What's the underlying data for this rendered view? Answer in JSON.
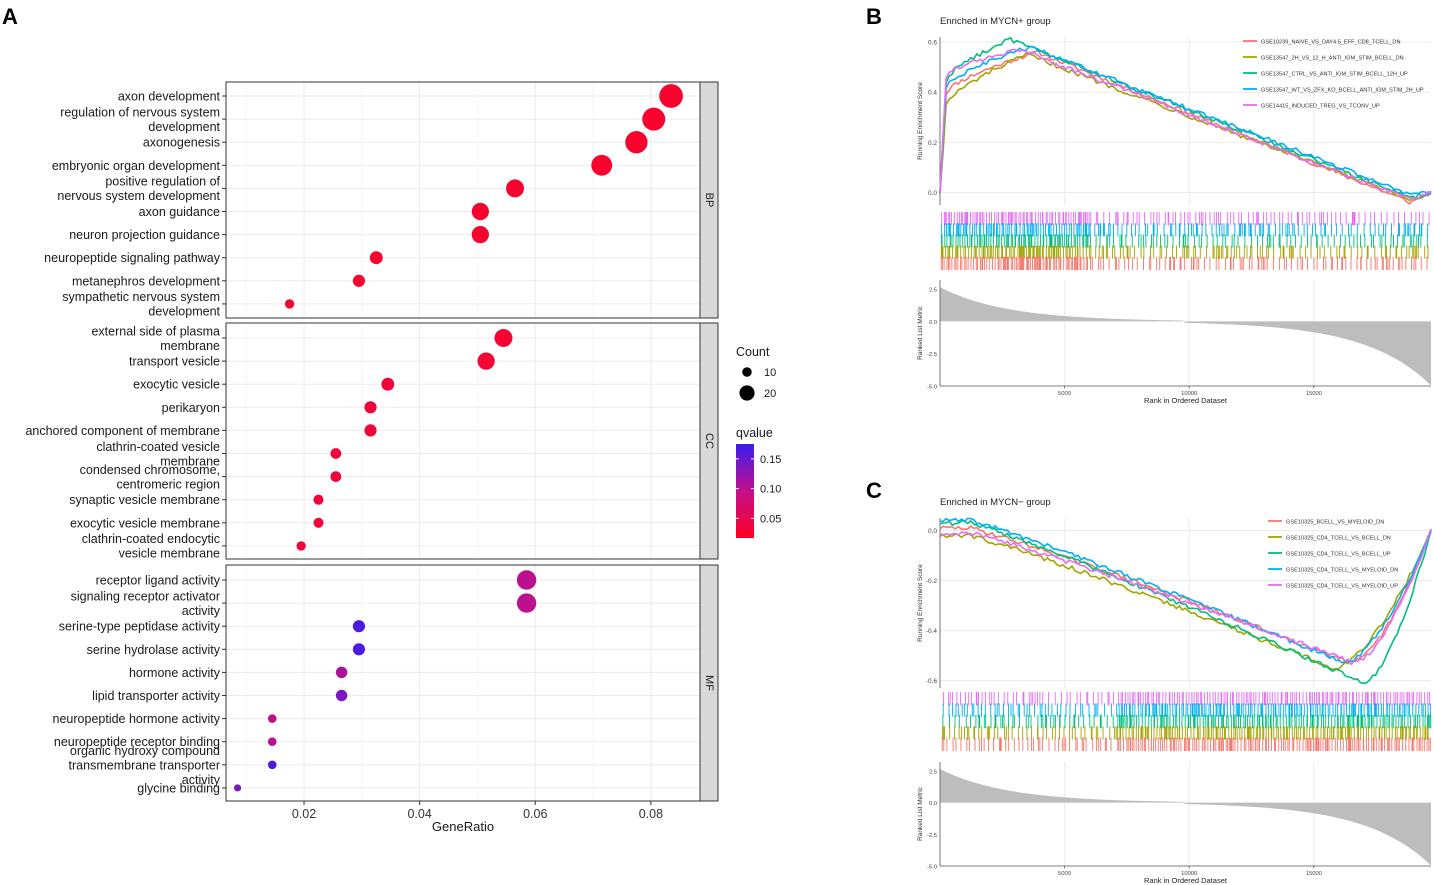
{
  "colors": {
    "count_dot": "#000000",
    "qvalue_low": "#ff0022",
    "qvalue_mid": "#c31089",
    "qvalue_high": "#3b1cf0",
    "facet_strip": "#d9d9d9",
    "grid": "#ebebeb",
    "metric_fill": "#bdbdbd",
    "series": [
      "#f8766d",
      "#a3a500",
      "#00bf7d",
      "#00b0f6",
      "#e76bf3"
    ]
  },
  "chart_data": [
    {
      "panel": "A",
      "type": "scatter",
      "xlabel": "GeneRatio",
      "xlim": [
        0.0065,
        0.0885
      ],
      "xticks": [
        0.02,
        0.04,
        0.06,
        0.08
      ],
      "xtick_labels": [
        "0.02",
        "0.04",
        "0.06",
        "0.08"
      ],
      "legend_count_title": "Count",
      "legend_count": [
        {
          "label": "10",
          "value": 10
        },
        {
          "label": "20",
          "value": 20
        }
      ],
      "legend_q_title": "qvalue",
      "legend_q_ticks": [
        {
          "label": "0.15",
          "value": 0.15
        },
        {
          "label": "0.10",
          "value": 0.1
        },
        {
          "label": "0.05",
          "value": 0.05
        }
      ],
      "qlim": [
        0.01,
        0.18
      ],
      "facets": [
        {
          "strip": "BP",
          "terms": [
            {
              "label": "axon development",
              "x": 0.0835,
              "count": 26,
              "q": 0.02
            },
            {
              "label": "regulation of nervous system\ndevelopment",
              "x": 0.0805,
              "count": 25,
              "q": 0.02
            },
            {
              "label": "axonogenesis",
              "x": 0.0775,
              "count": 24,
              "q": 0.02
            },
            {
              "label": "embryonic organ development",
              "x": 0.0715,
              "count": 22,
              "q": 0.02
            },
            {
              "label": "positive regulation of\nnervous system development",
              "x": 0.0565,
              "count": 18,
              "q": 0.02
            },
            {
              "label": "axon guidance",
              "x": 0.0505,
              "count": 17,
              "q": 0.02
            },
            {
              "label": "neuron projection guidance",
              "x": 0.0505,
              "count": 17,
              "q": 0.02
            },
            {
              "label": "neuropeptide signaling pathway",
              "x": 0.0325,
              "count": 11,
              "q": 0.02
            },
            {
              "label": "metanephros development",
              "x": 0.0295,
              "count": 10,
              "q": 0.02
            },
            {
              "label": "sympathetic nervous system\ndevelopment",
              "x": 0.0175,
              "count": 6,
              "q": 0.02
            }
          ]
        },
        {
          "strip": "CC",
          "terms": [
            {
              "label": "external side of plasma\nmembrane",
              "x": 0.0545,
              "count": 18,
              "q": 0.025
            },
            {
              "label": "transport vesicle",
              "x": 0.0515,
              "count": 17,
              "q": 0.025
            },
            {
              "label": "exocytic vesicle",
              "x": 0.0345,
              "count": 11,
              "q": 0.03
            },
            {
              "label": "perikaryon",
              "x": 0.0315,
              "count": 10,
              "q": 0.03
            },
            {
              "label": "anchored component of membrane",
              "x": 0.0315,
              "count": 10,
              "q": 0.03
            },
            {
              "label": "clathrin-coated vesicle\nmembrane",
              "x": 0.0255,
              "count": 8,
              "q": 0.03
            },
            {
              "label": "condensed chromosome,\ncentromeric region",
              "x": 0.0255,
              "count": 8,
              "q": 0.03
            },
            {
              "label": "synaptic vesicle membrane",
              "x": 0.0225,
              "count": 7,
              "q": 0.03
            },
            {
              "label": "exocytic vesicle membrane",
              "x": 0.0225,
              "count": 7,
              "q": 0.03
            },
            {
              "label": "clathrin-coated endocytic\nvesicle membrane",
              "x": 0.0195,
              "count": 6,
              "q": 0.03
            }
          ]
        },
        {
          "strip": "MF",
          "terms": [
            {
              "label": "receptor ligand activity",
              "x": 0.0585,
              "count": 20,
              "q": 0.1
            },
            {
              "label": "signaling receptor activator\nactivity",
              "x": 0.0585,
              "count": 20,
              "q": 0.1
            },
            {
              "label": "serine-type peptidase activity",
              "x": 0.0295,
              "count": 10,
              "q": 0.17
            },
            {
              "label": "serine hydrolase activity",
              "x": 0.0295,
              "count": 10,
              "q": 0.17
            },
            {
              "label": "hormone activity",
              "x": 0.0265,
              "count": 9,
              "q": 0.11
            },
            {
              "label": "lipid transporter activity",
              "x": 0.0265,
              "count": 9,
              "q": 0.14
            },
            {
              "label": "neuropeptide hormone activity",
              "x": 0.0145,
              "count": 5,
              "q": 0.1
            },
            {
              "label": "neuropeptide receptor binding",
              "x": 0.0145,
              "count": 5,
              "q": 0.1
            },
            {
              "label": "organic hydroxy compound\ntransmembrane transporter\nactivity",
              "x": 0.0145,
              "count": 5,
              "q": 0.17
            },
            {
              "label": "glycine binding",
              "x": 0.0085,
              "count": 3,
              "q": 0.14
            }
          ]
        }
      ]
    },
    {
      "panel": "B",
      "type": "line",
      "title": "Enriched in MYCN+ group",
      "ylabel": "Running Enrichment Score",
      "ylim": [
        -0.05,
        0.62
      ],
      "yticks": [
        0.0,
        0.2,
        0.4,
        0.6
      ],
      "ytick_labels": [
        "0.0",
        "0.2",
        "0.4",
        "0.6"
      ],
      "metric_ylabel": "Ranked List Metric",
      "metric_ylim": [
        -5.0,
        3.2
      ],
      "metric_yticks": [
        2.5,
        0.0,
        -2.5,
        -5.0
      ],
      "metric_ytick_labels": [
        "2.5",
        "0.0",
        "-2.5",
        "-5.0"
      ],
      "xlabel": "Rank in Ordered Dataset",
      "xlim": [
        0,
        19700
      ],
      "xticks": [
        5000,
        10000,
        15000
      ],
      "xtick_labels": [
        "5000",
        "10000",
        "15000"
      ],
      "series": [
        {
          "name": "GSE10239_NAIVE_VS_DAY4.5_EFF_CD8_TCELL_DN",
          "peak_rank": 3900,
          "peak": 0.56,
          "early": 0.4,
          "tail": -0.04
        },
        {
          "name": "GSE13547_2H_VS_12_H_ANTI_IGM_STIM_BCELL_DN",
          "peak_rank": 3500,
          "peak": 0.55,
          "early": 0.35,
          "tail": -0.03
        },
        {
          "name": "GSE13547_CTRL_VS_ANTI_IGM_STIM_BCELL_12H_UP",
          "peak_rank": 2800,
          "peak": 0.61,
          "early": 0.45,
          "tail": -0.02
        },
        {
          "name": "GSE13547_WT_VS_ZFX_KO_BCELL_ANTI_IGM_STIM_2H_UP",
          "peak_rank": 3600,
          "peak": 0.58,
          "early": 0.42,
          "tail": -0.01
        },
        {
          "name": "GSE14415_INDUCED_TREG_VS_TCONV_UP",
          "peak_rank": 3200,
          "peak": 0.57,
          "early": 0.47,
          "tail": -0.03
        }
      ]
    },
    {
      "panel": "C",
      "type": "line",
      "title": "Enriched in MYCN− group",
      "ylabel": "Running Enrichment Score",
      "ylim": [
        -0.63,
        0.05
      ],
      "yticks": [
        0.0,
        -0.2,
        -0.4,
        -0.6
      ],
      "ytick_labels": [
        "0.0",
        "-0.2",
        "-0.4",
        "-0.6"
      ],
      "metric_ylabel": "Ranked List Metric",
      "metric_ylim": [
        -5.0,
        3.2
      ],
      "metric_yticks": [
        2.5,
        0.0,
        -2.5,
        -5.0
      ],
      "metric_ytick_labels": [
        "2.5",
        "0.0",
        "-2.5",
        "-5.0"
      ],
      "xlabel": "Rank in Ordered Dataset",
      "xlim": [
        0,
        19700
      ],
      "xticks": [
        5000,
        10000,
        15000
      ],
      "xtick_labels": [
        "5000",
        "10000",
        "15000"
      ],
      "series": [
        {
          "name": "GSE10325_BCELL_VS_MYELOID_DN",
          "trough_rank": 16500,
          "trough": -0.53,
          "start": 0.01
        },
        {
          "name": "GSE10325_CD4_TCELL_VS_BCELL_DN",
          "trough_rank": 15800,
          "trough": -0.55,
          "start": -0.02
        },
        {
          "name": "GSE10325_CD4_TCELL_VS_BCELL_UP",
          "trough_rank": 17000,
          "trough": -0.61,
          "start": 0.03
        },
        {
          "name": "GSE10325_CD4_TCELL_VS_MYELOID_DN",
          "trough_rank": 16200,
          "trough": -0.53,
          "start": 0.04
        },
        {
          "name": "GSE10325_CD4_TCELL_VS_MYELOID_UP",
          "trough_rank": 16600,
          "trough": -0.53,
          "start": -0.01
        }
      ]
    }
  ],
  "panel_letters": [
    "A",
    "B",
    "C"
  ]
}
